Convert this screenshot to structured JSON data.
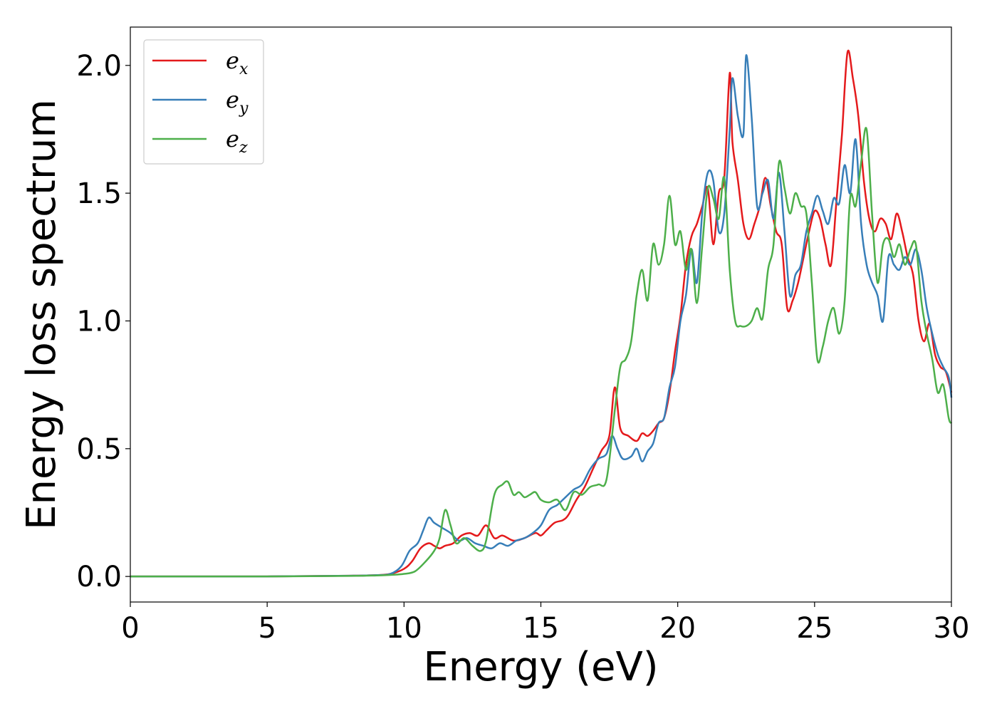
{
  "chart_data": {
    "type": "line",
    "xlabel": "Energy (eV)",
    "ylabel": "Energy loss spectrum",
    "xlim": [
      0,
      30
    ],
    "ylim": [
      -0.1,
      2.15
    ],
    "xticks": [
      0,
      5,
      10,
      15,
      20,
      25,
      30
    ],
    "xtick_labels": [
      "0",
      "5",
      "10",
      "15",
      "20",
      "25",
      "30"
    ],
    "yticks": [
      0.0,
      0.5,
      1.0,
      1.5,
      2.0
    ],
    "ytick_labels": [
      "0.0",
      "0.5",
      "1.0",
      "1.5",
      "2.0"
    ],
    "grid": false,
    "legend_position": "top-left",
    "series": [
      {
        "name": "e_x",
        "legend_base": "e",
        "legend_sub": "x",
        "color": "#e41a1c",
        "x": [
          0,
          5,
          8,
          9,
          9.5,
          10,
          10.3,
          10.6,
          10.9,
          11.1,
          11.3,
          11.5,
          11.8,
          12.1,
          12.4,
          12.7,
          13.0,
          13.3,
          13.6,
          14.0,
          14.4,
          14.8,
          15.0,
          15.2,
          15.5,
          15.8,
          16.0,
          16.3,
          16.6,
          16.9,
          17.2,
          17.5,
          17.7,
          17.9,
          18.2,
          18.5,
          18.7,
          18.9,
          19.1,
          19.3,
          19.5,
          19.7,
          19.9,
          20.1,
          20.3,
          20.5,
          20.7,
          20.9,
          21.1,
          21.3,
          21.5,
          21.7,
          21.9,
          22.0,
          22.2,
          22.4,
          22.6,
          22.8,
          23.0,
          23.2,
          23.4,
          23.6,
          23.8,
          24.0,
          24.2,
          24.4,
          24.6,
          24.8,
          25.0,
          25.2,
          25.4,
          25.6,
          25.8,
          26.0,
          26.2,
          26.4,
          26.6,
          26.8,
          27.0,
          27.2,
          27.4,
          27.6,
          27.8,
          28.0,
          28.2,
          28.4,
          28.6,
          28.8,
          29.0,
          29.2,
          29.4,
          29.6,
          29.8,
          30.0
        ],
        "values": [
          0,
          0,
          0.003,
          0.005,
          0.01,
          0.03,
          0.06,
          0.11,
          0.13,
          0.12,
          0.11,
          0.12,
          0.13,
          0.16,
          0.17,
          0.16,
          0.2,
          0.15,
          0.16,
          0.14,
          0.15,
          0.17,
          0.16,
          0.18,
          0.21,
          0.22,
          0.24,
          0.3,
          0.35,
          0.42,
          0.49,
          0.55,
          0.74,
          0.58,
          0.55,
          0.53,
          0.56,
          0.55,
          0.57,
          0.6,
          0.62,
          0.72,
          0.88,
          1.02,
          1.22,
          1.33,
          1.38,
          1.45,
          1.52,
          1.3,
          1.5,
          1.56,
          1.97,
          1.7,
          1.55,
          1.38,
          1.32,
          1.38,
          1.45,
          1.56,
          1.45,
          1.35,
          1.3,
          1.05,
          1.08,
          1.15,
          1.25,
          1.35,
          1.43,
          1.4,
          1.3,
          1.22,
          1.47,
          1.73,
          2.05,
          1.95,
          1.8,
          1.55,
          1.4,
          1.35,
          1.4,
          1.38,
          1.32,
          1.42,
          1.35,
          1.25,
          1.18,
          1.0,
          0.92,
          0.99,
          0.87,
          0.82,
          0.8,
          0.72
        ]
      },
      {
        "name": "e_y",
        "legend_base": "e",
        "legend_sub": "y",
        "color": "#377eb8",
        "x": [
          0,
          5,
          8,
          9,
          9.5,
          9.9,
          10.2,
          10.5,
          10.7,
          10.9,
          11.1,
          11.4,
          11.7,
          12.0,
          12.3,
          12.6,
          12.9,
          13.2,
          13.5,
          13.8,
          14.1,
          14.4,
          14.7,
          15.0,
          15.3,
          15.6,
          15.9,
          16.2,
          16.5,
          16.8,
          17.1,
          17.4,
          17.6,
          17.8,
          18.0,
          18.3,
          18.5,
          18.7,
          18.9,
          19.1,
          19.3,
          19.5,
          19.7,
          19.9,
          20.1,
          20.3,
          20.5,
          20.7,
          20.9,
          21.1,
          21.3,
          21.5,
          21.7,
          21.9,
          22.0,
          22.2,
          22.4,
          22.5,
          22.7,
          22.9,
          23.1,
          23.3,
          23.5,
          23.7,
          23.9,
          24.1,
          24.3,
          24.5,
          24.7,
          24.9,
          25.1,
          25.3,
          25.5,
          25.7,
          25.9,
          26.1,
          26.3,
          26.5,
          26.7,
          26.9,
          27.1,
          27.3,
          27.5,
          27.7,
          27.9,
          28.1,
          28.3,
          28.5,
          28.7,
          28.9,
          29.1,
          29.3,
          29.5,
          29.7,
          29.9,
          30.0
        ],
        "values": [
          0,
          0,
          0.003,
          0.005,
          0.01,
          0.04,
          0.1,
          0.13,
          0.18,
          0.23,
          0.21,
          0.19,
          0.17,
          0.14,
          0.15,
          0.13,
          0.12,
          0.11,
          0.13,
          0.12,
          0.14,
          0.15,
          0.17,
          0.2,
          0.26,
          0.28,
          0.31,
          0.34,
          0.36,
          0.42,
          0.46,
          0.48,
          0.55,
          0.5,
          0.46,
          0.47,
          0.5,
          0.45,
          0.49,
          0.52,
          0.6,
          0.62,
          0.74,
          0.82,
          1.0,
          1.1,
          1.28,
          1.15,
          1.43,
          1.58,
          1.55,
          1.35,
          1.42,
          1.75,
          1.95,
          1.8,
          1.73,
          2.04,
          1.8,
          1.45,
          1.5,
          1.55,
          1.4,
          1.58,
          1.35,
          1.1,
          1.18,
          1.22,
          1.35,
          1.42,
          1.49,
          1.43,
          1.38,
          1.48,
          1.46,
          1.61,
          1.5,
          1.71,
          1.38,
          1.22,
          1.15,
          1.1,
          1.0,
          1.25,
          1.22,
          1.2,
          1.25,
          1.22,
          1.28,
          1.2,
          1.05,
          0.95,
          0.87,
          0.82,
          0.78,
          0.7
        ]
      },
      {
        "name": "e_z",
        "legend_base": "e",
        "legend_sub": "z",
        "color": "#4daf4a",
        "x": [
          0,
          5,
          8,
          9,
          9.5,
          10,
          10.4,
          10.8,
          11.1,
          11.3,
          11.5,
          11.7,
          11.9,
          12.2,
          12.5,
          12.8,
          13.0,
          13.3,
          13.6,
          13.8,
          14.0,
          14.2,
          14.4,
          14.6,
          14.8,
          15.0,
          15.3,
          15.6,
          15.9,
          16.2,
          16.5,
          16.8,
          17.1,
          17.4,
          17.7,
          17.9,
          18.1,
          18.3,
          18.5,
          18.7,
          18.9,
          19.1,
          19.3,
          19.5,
          19.7,
          19.9,
          20.1,
          20.3,
          20.5,
          20.7,
          20.9,
          21.1,
          21.3,
          21.5,
          21.7,
          21.9,
          22.1,
          22.3,
          22.5,
          22.7,
          22.9,
          23.1,
          23.3,
          23.5,
          23.7,
          23.9,
          24.1,
          24.3,
          24.5,
          24.7,
          24.9,
          25.1,
          25.3,
          25.5,
          25.7,
          25.9,
          26.1,
          26.3,
          26.5,
          26.7,
          26.9,
          27.1,
          27.3,
          27.5,
          27.7,
          27.9,
          28.1,
          28.3,
          28.5,
          28.7,
          28.9,
          29.1,
          29.3,
          29.5,
          29.7,
          29.9,
          30.0
        ],
        "values": [
          0,
          0,
          0.002,
          0.004,
          0.006,
          0.01,
          0.02,
          0.06,
          0.1,
          0.15,
          0.26,
          0.2,
          0.13,
          0.15,
          0.12,
          0.1,
          0.14,
          0.32,
          0.36,
          0.37,
          0.32,
          0.33,
          0.31,
          0.32,
          0.33,
          0.3,
          0.29,
          0.3,
          0.26,
          0.33,
          0.32,
          0.35,
          0.36,
          0.38,
          0.65,
          0.82,
          0.85,
          0.92,
          1.1,
          1.2,
          1.08,
          1.3,
          1.22,
          1.3,
          1.49,
          1.3,
          1.35,
          1.2,
          1.28,
          1.07,
          1.3,
          1.52,
          1.48,
          1.4,
          1.56,
          1.2,
          1.0,
          0.98,
          0.98,
          1.0,
          1.05,
          1.01,
          1.2,
          1.3,
          1.62,
          1.52,
          1.42,
          1.5,
          1.45,
          1.42,
          1.15,
          0.85,
          0.9,
          1.0,
          1.05,
          0.95,
          1.08,
          1.48,
          1.45,
          1.62,
          1.75,
          1.42,
          1.15,
          1.3,
          1.32,
          1.25,
          1.3,
          1.22,
          1.28,
          1.3,
          1.08,
          0.95,
          0.85,
          0.72,
          0.75,
          0.62,
          0.6
        ]
      }
    ]
  }
}
